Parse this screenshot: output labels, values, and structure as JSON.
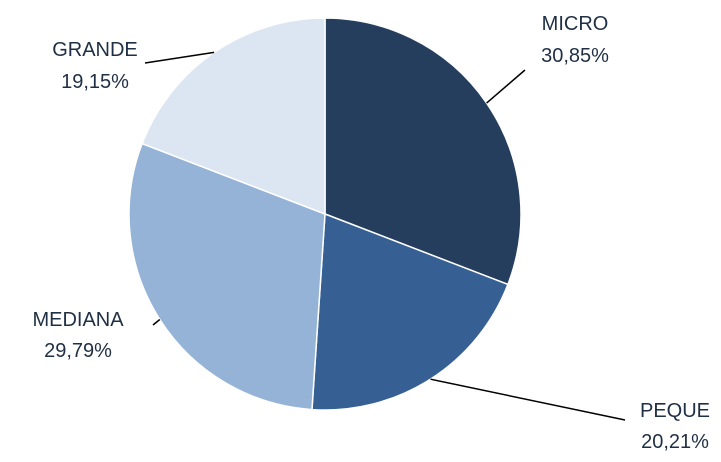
{
  "chart_data": {
    "type": "pie",
    "title": "",
    "slices": [
      {
        "label": "MICRO",
        "value": 30.85,
        "value_label": "30,85%",
        "color": "#253e5e"
      },
      {
        "label": "PEQUE",
        "value": 20.21,
        "value_label": "20,21%",
        "color": "#365f93"
      },
      {
        "label": "MEDIANA",
        "value": 29.79,
        "value_label": "29,79%",
        "color": "#95b3d7"
      },
      {
        "label": "GRANDE",
        "value": 19.15,
        "value_label": "19,15%",
        "color": "#dce6f2"
      }
    ],
    "start_angle_deg": 0,
    "direction": "clockwise",
    "legend": "none",
    "data_labels": "outside-with-leader-lines",
    "label_color": "#1f2f44"
  }
}
